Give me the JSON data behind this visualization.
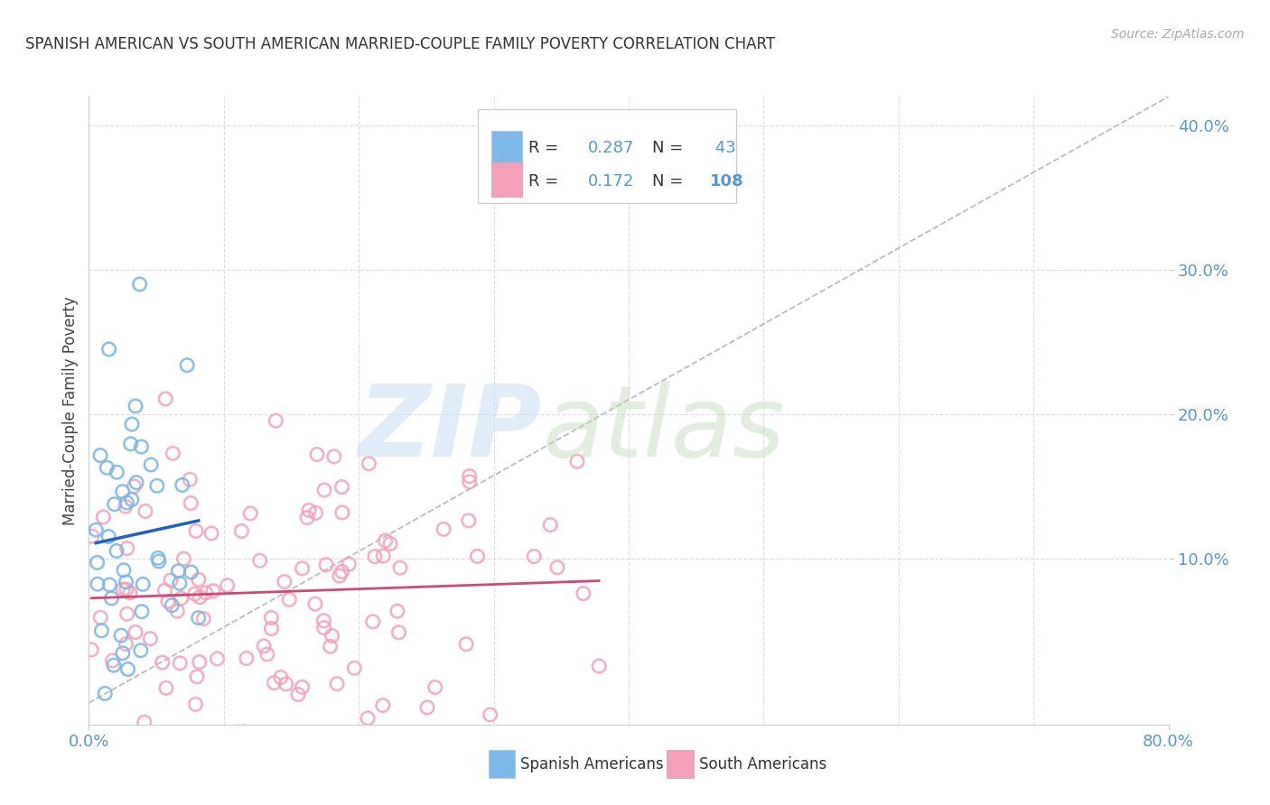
{
  "title": "SPANISH AMERICAN VS SOUTH AMERICAN MARRIED-COUPLE FAMILY POVERTY CORRELATION CHART",
  "source": "Source: ZipAtlas.com",
  "ylabel": "Married-Couple Family Poverty",
  "xlim": [
    0.0,
    0.8
  ],
  "ylim": [
    -0.015,
    0.42
  ],
  "ytick_positions": [
    0.1,
    0.2,
    0.3,
    0.4
  ],
  "ytick_labels": [
    "10.0%",
    "20.0%",
    "30.0%",
    "40.0%"
  ],
  "xtick_positions": [
    0.0,
    0.8
  ],
  "xtick_labels": [
    "0.0%",
    "80.0%"
  ],
  "blue_R": 0.287,
  "blue_N": 43,
  "pink_R": 0.172,
  "pink_N": 108,
  "blue_color": "#7EB8E8",
  "pink_color": "#F4A0B8",
  "blue_line_color": "#2060C0",
  "pink_line_color": "#D04878",
  "diag_color": "#BBBBBB",
  "legend_blue_label": "Spanish Americans",
  "legend_pink_label": "South Americans",
  "title_fontsize": 12,
  "tick_fontsize": 13,
  "ylabel_fontsize": 12,
  "grid_color": "#DDDDDD",
  "tick_color": "#5599CC"
}
